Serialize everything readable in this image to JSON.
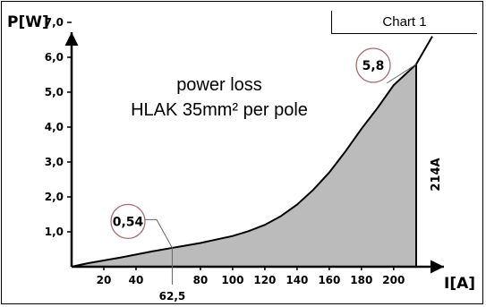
{
  "chart_tag": "Chart 1",
  "chart_data": {
    "type": "area",
    "title_lines": [
      "power loss",
      "HLAK 35mm² per pole"
    ],
    "xlabel": "I[A]",
    "ylabel": "P[W]",
    "xlim": [
      0,
      224
    ],
    "ylim": [
      0,
      7.5
    ],
    "x_ticks": [
      20,
      40,
      80,
      100,
      120,
      140,
      160,
      180,
      200
    ],
    "x_tick_labels": [
      "20",
      "40",
      "80",
      "100",
      "120",
      "140",
      "160",
      "180",
      "200"
    ],
    "y_ticks": [
      1,
      2,
      3,
      4,
      5,
      6,
      7
    ],
    "y_tick_labels": [
      "1,0",
      "2,0",
      "3,0",
      "4,0",
      "5,0",
      "6,0",
      "7,0"
    ],
    "series": [
      {
        "x": [
          0,
          10,
          20,
          30,
          40,
          50,
          62.5,
          70,
          80,
          90,
          100,
          110,
          120,
          130,
          140,
          150,
          160,
          170,
          180,
          190,
          200,
          207,
          214,
          224
        ],
        "y": [
          0,
          0.1,
          0.18,
          0.26,
          0.35,
          0.44,
          0.54,
          0.6,
          0.68,
          0.78,
          0.88,
          1.02,
          1.2,
          1.45,
          1.78,
          2.2,
          2.7,
          3.3,
          3.95,
          4.55,
          5.2,
          5.5,
          5.8,
          6.6
        ]
      }
    ],
    "shaded_to_x": 214,
    "annotations": [
      {
        "x": 62.5,
        "y": 0.54,
        "label": "0,54",
        "marker_label": "62,5"
      },
      {
        "x": 214,
        "y": 5.8,
        "label": "5,8",
        "marker_label": "214A"
      }
    ],
    "colors": {
      "fill": "#bbbbbb",
      "line": "#000000"
    }
  }
}
